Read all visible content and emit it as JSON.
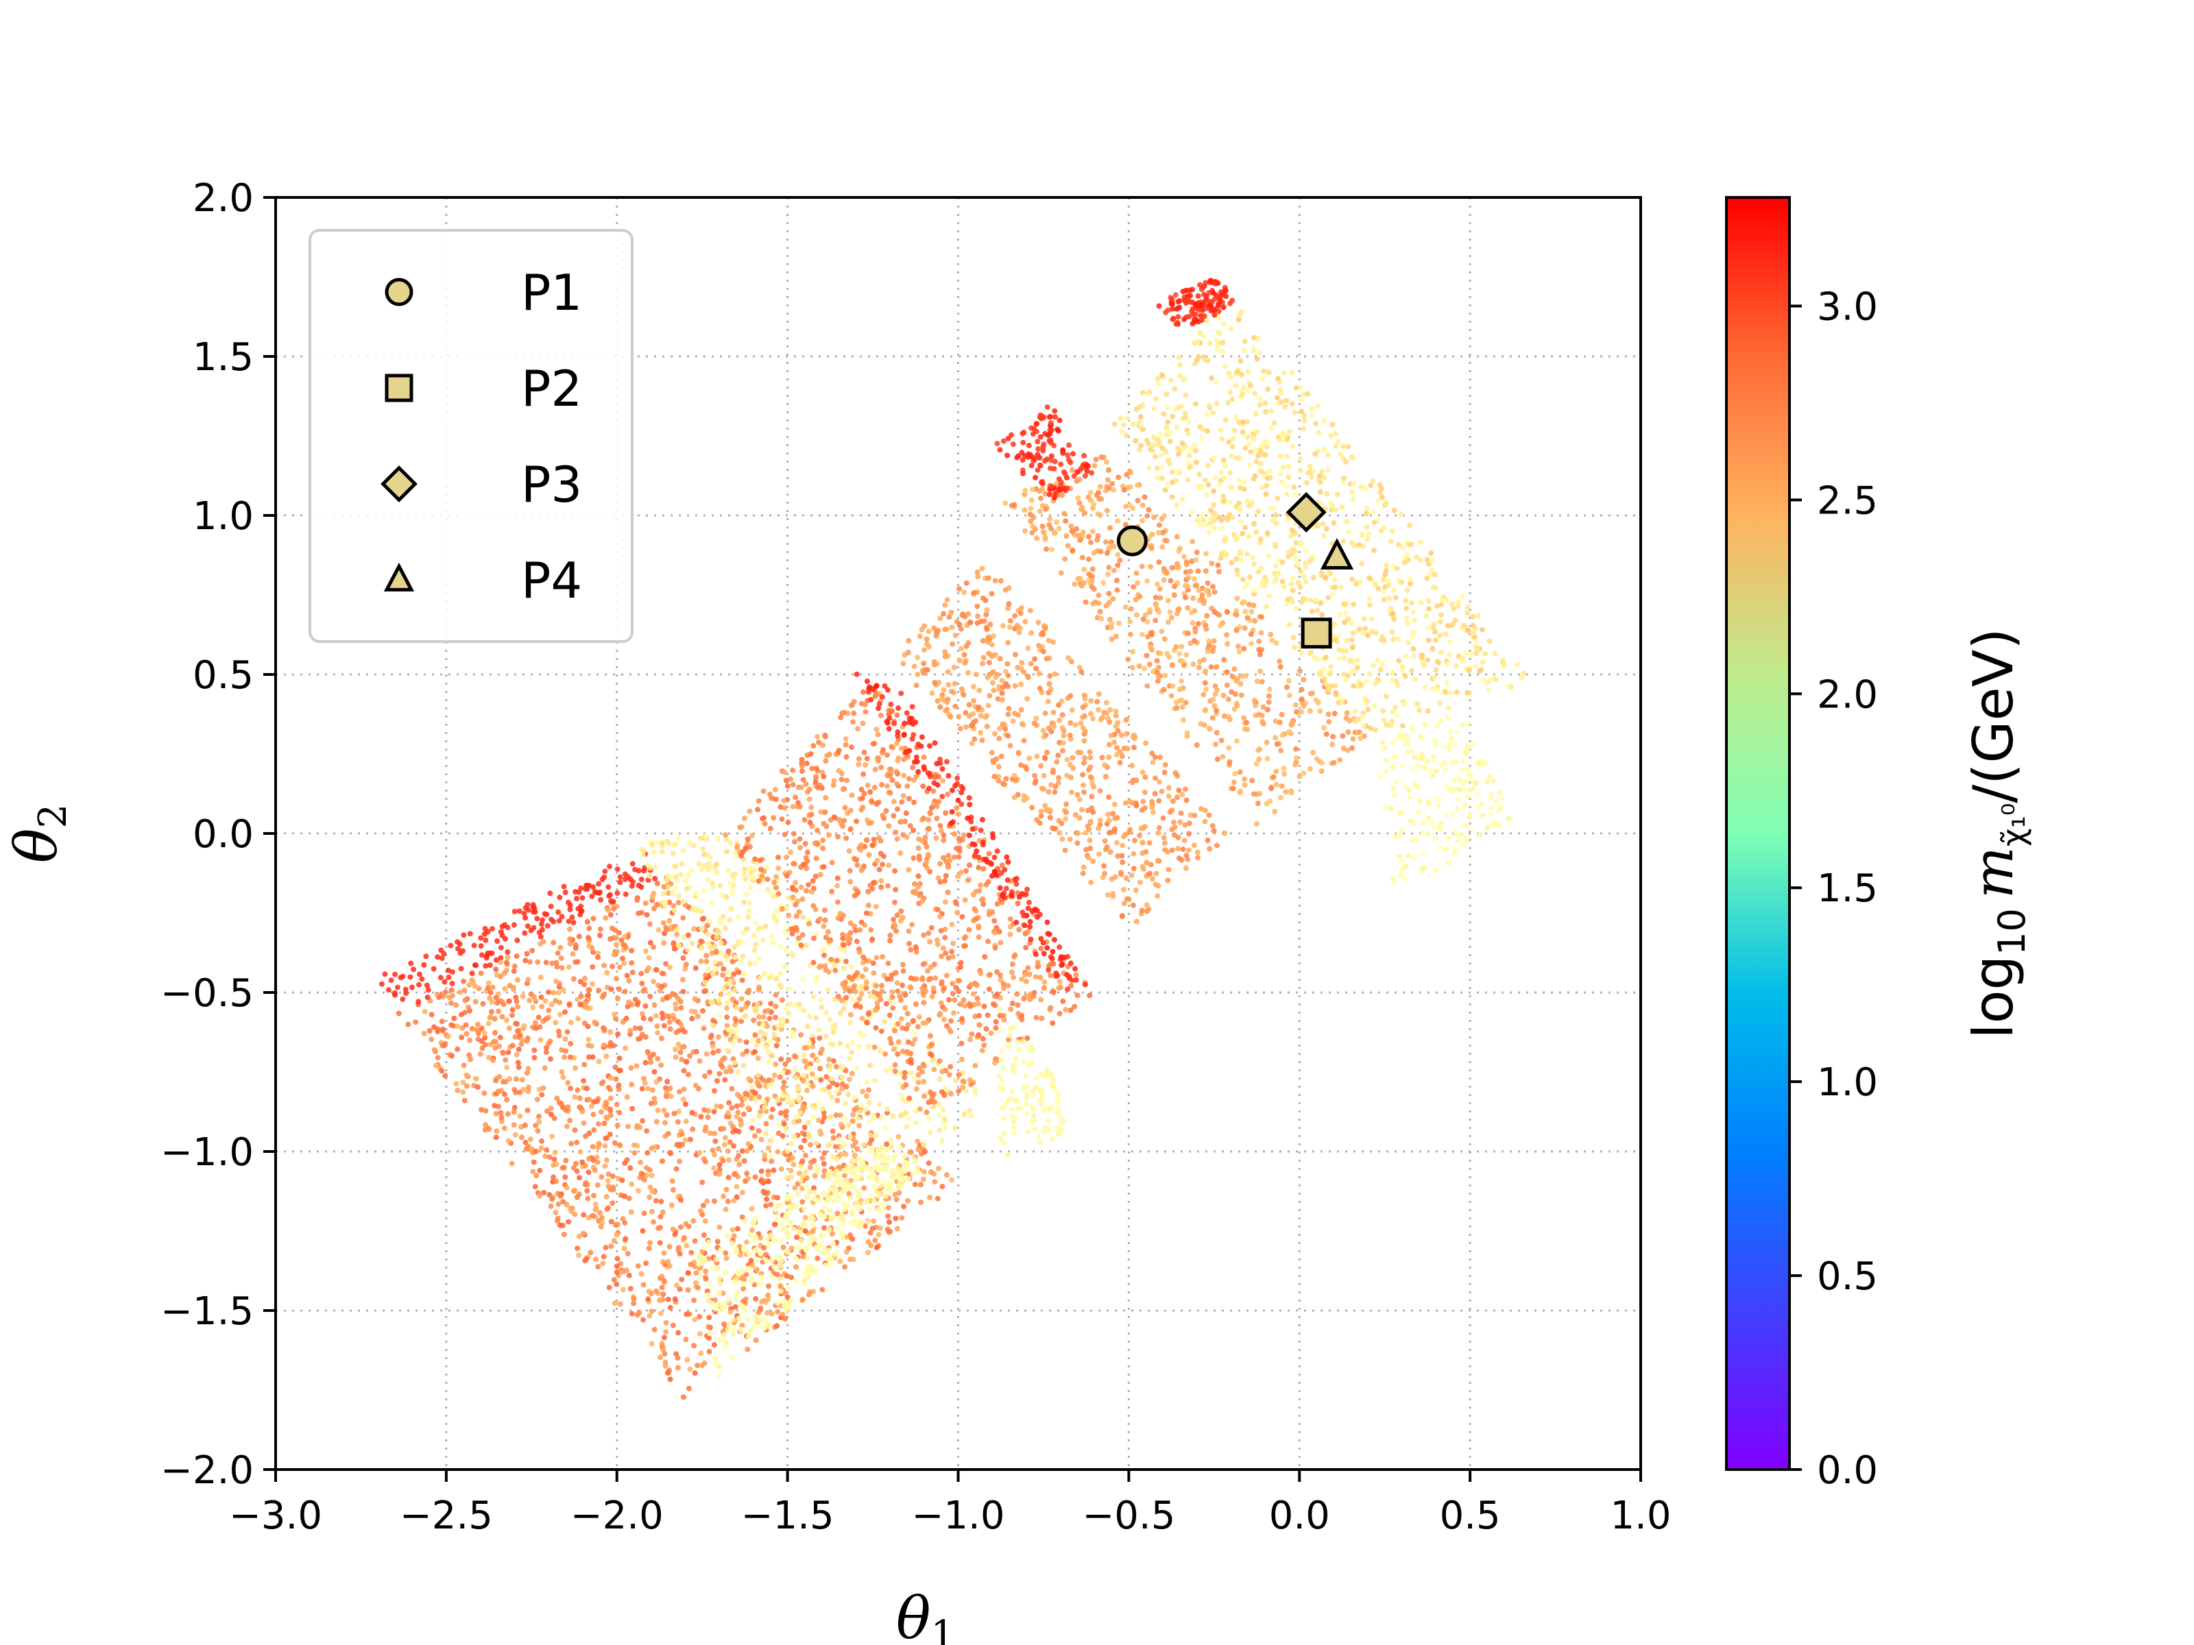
{
  "chart_data": {
    "type": "scatter",
    "xlim": [
      -3.0,
      1.0
    ],
    "ylim": [
      -2.0,
      2.0
    ],
    "x_ticks": [
      -3.0,
      -2.5,
      -2.0,
      -1.5,
      -1.0,
      -0.5,
      0.0,
      0.5,
      1.0
    ],
    "y_ticks": [
      -2.0,
      -1.5,
      -1.0,
      -0.5,
      0.0,
      0.5,
      1.0,
      1.5,
      2.0
    ],
    "x_tick_labels": [
      "−3.0",
      "−2.5",
      "−2.0",
      "−1.5",
      "−1.0",
      "−0.5",
      "0.0",
      "0.5",
      "1.0"
    ],
    "y_tick_labels": [
      "−2.0",
      "−1.5",
      "−1.0",
      "−0.5",
      "0.0",
      "0.5",
      "1.0",
      "1.5",
      "2.0"
    ],
    "xlabel": {
      "main": "θ",
      "sub": "1"
    },
    "ylabel": {
      "main": "θ",
      "sub": "2"
    },
    "grid": true,
    "legend_position": "upper-left",
    "colorbar": {
      "colormap": "rainbow",
      "range": [
        0.0,
        3.28
      ],
      "ticks": [
        0.0,
        0.5,
        1.0,
        1.5,
        2.0,
        2.5,
        3.0
      ],
      "tick_labels": [
        "0.0",
        "0.5",
        "1.0",
        "1.5",
        "2.0",
        "2.5",
        "3.0"
      ],
      "label": {
        "prefix": "log",
        "prefix_sub": "10",
        "var": "m",
        "var_sub": "χ̃₁⁰",
        "suffix": "/(GeV)"
      }
    },
    "markers": [
      {
        "name": "P1",
        "shape": "circle",
        "x": -0.49,
        "y": 0.92
      },
      {
        "name": "P2",
        "shape": "square",
        "x": 0.05,
        "y": 0.63
      },
      {
        "name": "P3",
        "shape": "diamond",
        "x": 0.02,
        "y": 1.01
      },
      {
        "name": "P4",
        "shape": "triangle",
        "x": 0.11,
        "y": 0.87
      }
    ],
    "marker_color": "#e5d48c",
    "regions": [
      {
        "poly": [
          [
            -2.72,
            -0.46
          ],
          [
            -1.93,
            -0.05
          ],
          [
            -1.0,
            -1.1
          ],
          [
            -1.8,
            -1.78
          ]
        ],
        "c_lo": 2.45,
        "c_hi": 2.9,
        "edge": "lo"
      },
      {
        "poly": [
          [
            -1.95,
            -0.02
          ],
          [
            -1.65,
            0.0
          ],
          [
            -0.9,
            -0.85
          ],
          [
            -1.45,
            -1.3
          ]
        ],
        "c_lo": 1.8,
        "c_hi": 2.2
      },
      {
        "poly": [
          [
            -1.7,
            0.0
          ],
          [
            -1.25,
            0.48
          ],
          [
            -0.6,
            -0.5
          ],
          [
            -1.1,
            -0.9
          ]
        ],
        "c_lo": 2.5,
        "c_hi": 2.85
      },
      {
        "poly": [
          [
            -1.32,
            0.52
          ],
          [
            -1.2,
            0.52
          ],
          [
            -0.62,
            -0.48
          ],
          [
            -0.7,
            -0.5
          ]
        ],
        "c_lo": 3.05,
        "c_hi": 3.2
      },
      {
        "poly": [
          [
            -1.2,
            0.55
          ],
          [
            -0.92,
            0.86
          ],
          [
            -0.2,
            0.0
          ],
          [
            -0.5,
            -0.3
          ]
        ],
        "c_lo": 2.45,
        "c_hi": 2.75
      },
      {
        "poly": [
          [
            -0.88,
            -0.55
          ],
          [
            -0.72,
            -0.75
          ],
          [
            -0.68,
            -0.95
          ],
          [
            -0.88,
            -1.02
          ]
        ],
        "c_lo": 1.75,
        "c_hi": 1.9
      },
      {
        "poly": [
          [
            -1.78,
            -1.3
          ],
          [
            -1.2,
            -0.96
          ],
          [
            -1.1,
            -1.05
          ],
          [
            -1.7,
            -1.72
          ]
        ],
        "c_lo": 1.6,
        "c_hi": 1.95
      },
      {
        "poly": [
          [
            -0.88,
            1.05
          ],
          [
            -0.55,
            1.2
          ],
          [
            0.22,
            0.32
          ],
          [
            -0.12,
            0.02
          ]
        ],
        "c_lo": 2.35,
        "c_hi": 2.75
      },
      {
        "poly": [
          [
            -0.55,
            1.28
          ],
          [
            -0.2,
            1.7
          ],
          [
            0.68,
            0.48
          ],
          [
            0.2,
            0.3
          ]
        ],
        "c_lo": 1.8,
        "c_hi": 2.35
      },
      {
        "poly": [
          [
            -0.9,
            1.22
          ],
          [
            -0.72,
            1.36
          ],
          [
            -0.6,
            1.14
          ],
          [
            -0.72,
            1.04
          ]
        ],
        "c_lo": 3.0,
        "c_hi": 3.2
      },
      {
        "poly": [
          [
            -0.42,
            1.67
          ],
          [
            -0.24,
            1.75
          ],
          [
            -0.18,
            1.66
          ],
          [
            -0.36,
            1.58
          ]
        ],
        "c_lo": 3.0,
        "c_hi": 3.2
      },
      {
        "poly": [
          [
            0.22,
            0.3
          ],
          [
            0.48,
            0.38
          ],
          [
            0.62,
            0.05
          ],
          [
            0.28,
            -0.22
          ]
        ],
        "c_lo": 1.6,
        "c_hi": 1.95
      }
    ]
  }
}
